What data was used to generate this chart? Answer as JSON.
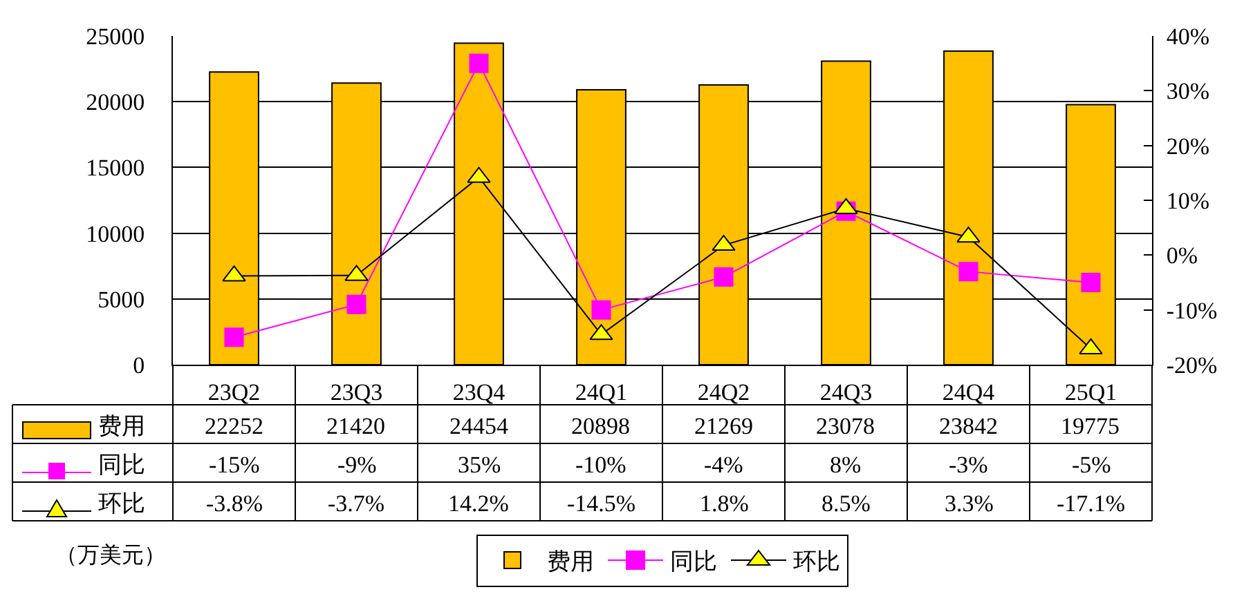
{
  "chart_data": {
    "type": "bar",
    "categories": [
      "23Q2",
      "23Q3",
      "23Q4",
      "24Q1",
      "24Q2",
      "24Q3",
      "24Q4",
      "25Q1"
    ],
    "series": [
      {
        "name": "费用",
        "color": "#ffc000",
        "values": [
          22252,
          21420,
          24454,
          20898,
          21269,
          23078,
          23842,
          19775
        ],
        "value_labels": [
          "22252",
          "21420",
          "24454",
          "20898",
          "21269",
          "23078",
          "23842",
          "19775"
        ]
      },
      {
        "name": "同比",
        "type": "line",
        "axis": "y2",
        "color": "#ff00ff",
        "marker": "square",
        "values": [
          -15,
          -9,
          35,
          -10,
          -4,
          8,
          -3,
          -5
        ],
        "value_labels": [
          "-15%",
          "-9%",
          "35%",
          "-10%",
          "-4%",
          "8%",
          "-3%",
          "-5%"
        ]
      },
      {
        "name": "环比",
        "type": "line",
        "axis": "y2",
        "color": "#000000",
        "marker": "triangle",
        "values": [
          -3.8,
          -3.7,
          14.2,
          -14.5,
          1.8,
          8.5,
          3.3,
          -17.1
        ],
        "value_labels": [
          "-3.8%",
          "-3.7%",
          "14.2%",
          "-14.5%",
          "1.8%",
          "8.5%",
          "3.3%",
          "-17.1%"
        ]
      }
    ],
    "ylim": [
      0,
      25000
    ],
    "yticks": [
      0,
      5000,
      10000,
      15000,
      20000,
      25000
    ],
    "y2lim": [
      -20,
      40
    ],
    "y2ticks": [
      {
        "value": -20,
        "label": "-20%"
      },
      {
        "value": -10,
        "label": "-10%"
      },
      {
        "value": 0,
        "label": "0%"
      },
      {
        "value": 10,
        "label": "10%"
      },
      {
        "value": 20,
        "label": "20%"
      },
      {
        "value": 30,
        "label": "30%"
      },
      {
        "value": 40,
        "label": "40%"
      }
    ],
    "grid": "y",
    "legend": "bottom",
    "annotations": [
      "（万美元）"
    ]
  }
}
